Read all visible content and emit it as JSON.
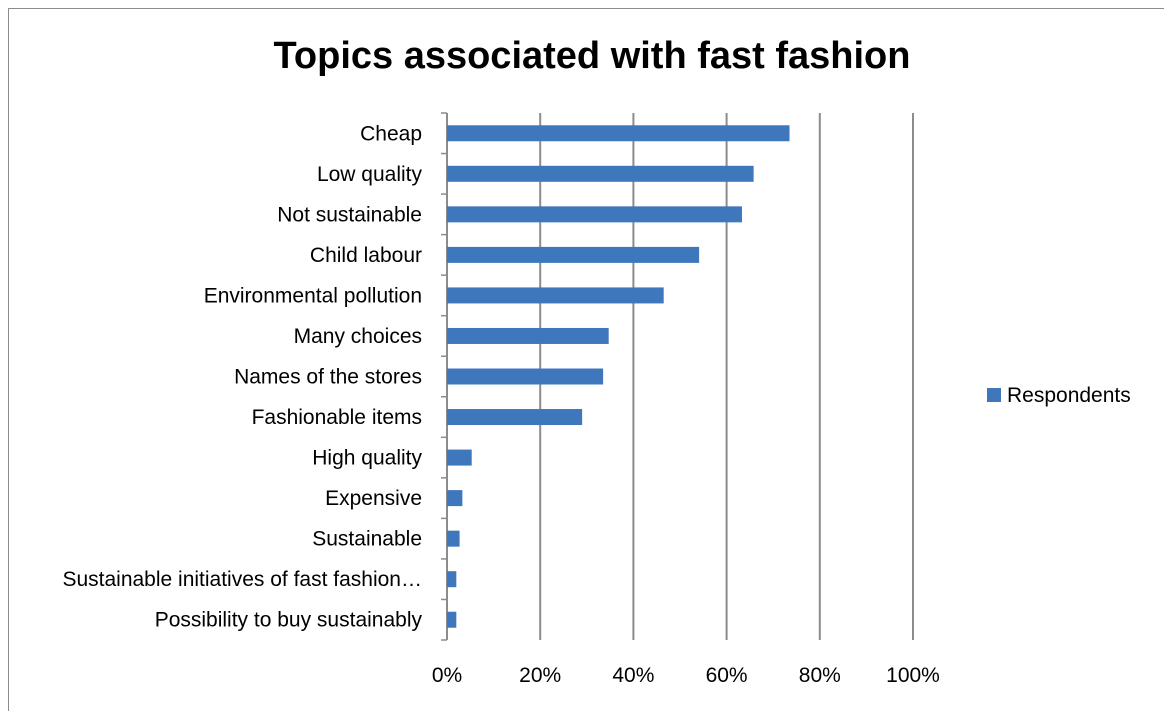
{
  "chart_data": {
    "type": "bar",
    "orientation": "horizontal",
    "title": "Topics associated with fast fashion",
    "categories": [
      "Cheap",
      "Low quality",
      "Not sustainable",
      "Child labour",
      "Environmental pollution",
      "Many choices",
      "Names of the stores",
      "Fashionable items",
      "High quality",
      "Expensive",
      "Sustainable",
      "Sustainable initiatives of fast fashion…",
      "Possibility to buy sustainably"
    ],
    "series": [
      {
        "name": "Respondents",
        "color": "#3f77bc",
        "values": [
          0.735,
          0.658,
          0.633,
          0.541,
          0.465,
          0.347,
          0.335,
          0.29,
          0.053,
          0.033,
          0.027,
          0.02,
          0.02
        ]
      }
    ],
    "xlim": [
      0,
      1
    ],
    "x_ticks": [
      "0%",
      "20%",
      "40%",
      "60%",
      "80%",
      "100%"
    ],
    "grid": "vertical",
    "legend_position": "right"
  }
}
